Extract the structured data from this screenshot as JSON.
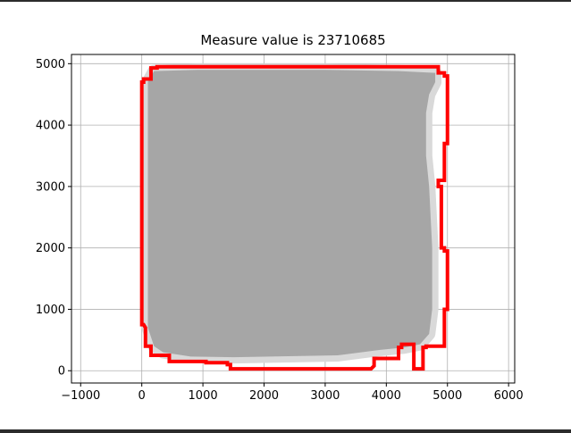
{
  "chart_data": {
    "type": "area",
    "title": "Measure value is 23710685",
    "xlabel": "",
    "ylabel": "",
    "xlim": [
      -1150,
      6100
    ],
    "ylim": [
      -200,
      5150
    ],
    "xticks": [
      -1000,
      0,
      1000,
      2000,
      3000,
      4000,
      5000,
      6000
    ],
    "xtick_labels": [
      "−1000",
      "0",
      "1000",
      "2000",
      "3000",
      "4000",
      "5000",
      "6000"
    ],
    "yticks": [
      0,
      1000,
      2000,
      3000,
      4000,
      5000
    ],
    "ytick_labels": [
      "0",
      "1000",
      "2000",
      "3000",
      "4000",
      "5000"
    ],
    "grid": true,
    "fill_color": "#a6a6a6",
    "fill_edge_color": "#d9d9d9",
    "outline_color": "#ff0000",
    "outline": {
      "x": [
        150,
        150,
        30,
        30,
        0,
        0,
        0,
        30,
        60,
        60,
        150,
        150,
        450,
        450,
        1050,
        1050,
        1400,
        1400,
        1450,
        1450,
        3750,
        3750,
        3800,
        3800,
        4200,
        4200,
        4250,
        4250,
        4450,
        4450,
        4450,
        4600,
        4600,
        4650,
        4650,
        4950,
        4950,
        5000,
        5000,
        4950,
        4950,
        4900,
        4900,
        4850,
        4850,
        4950,
        4950,
        5000,
        5000,
        4950,
        4950,
        4850,
        4850,
        2000,
        2000,
        250,
        250,
        150
      ],
      "y": [
        4850,
        4750,
        4750,
        4700,
        4700,
        2000,
        750,
        750,
        700,
        400,
        400,
        250,
        250,
        150,
        150,
        130,
        130,
        100,
        100,
        30,
        30,
        30,
        80,
        200,
        200,
        380,
        380,
        430,
        430,
        380,
        30,
        30,
        380,
        380,
        400,
        400,
        1000,
        1000,
        1950,
        1950,
        2000,
        2000,
        3000,
        3000,
        3100,
        3100,
        3700,
        3700,
        4800,
        4800,
        4850,
        4850,
        4950,
        4950,
        4950,
        4950,
        4930,
        4930
      ]
    },
    "fill_polygon": {
      "x": [
        200,
        100,
        100,
        200,
        350,
        800,
        1500,
        3200,
        3900,
        4300,
        4550,
        4700,
        4750,
        4750,
        4700,
        4650,
        4650,
        4700,
        4800,
        4800,
        4200,
        3000,
        900
      ],
      "y": [
        4880,
        4700,
        700,
        400,
        300,
        230,
        220,
        250,
        340,
        380,
        430,
        600,
        1000,
        2000,
        3000,
        3500,
        4200,
        4500,
        4700,
        4850,
        4880,
        4900,
        4900
      ]
    }
  }
}
